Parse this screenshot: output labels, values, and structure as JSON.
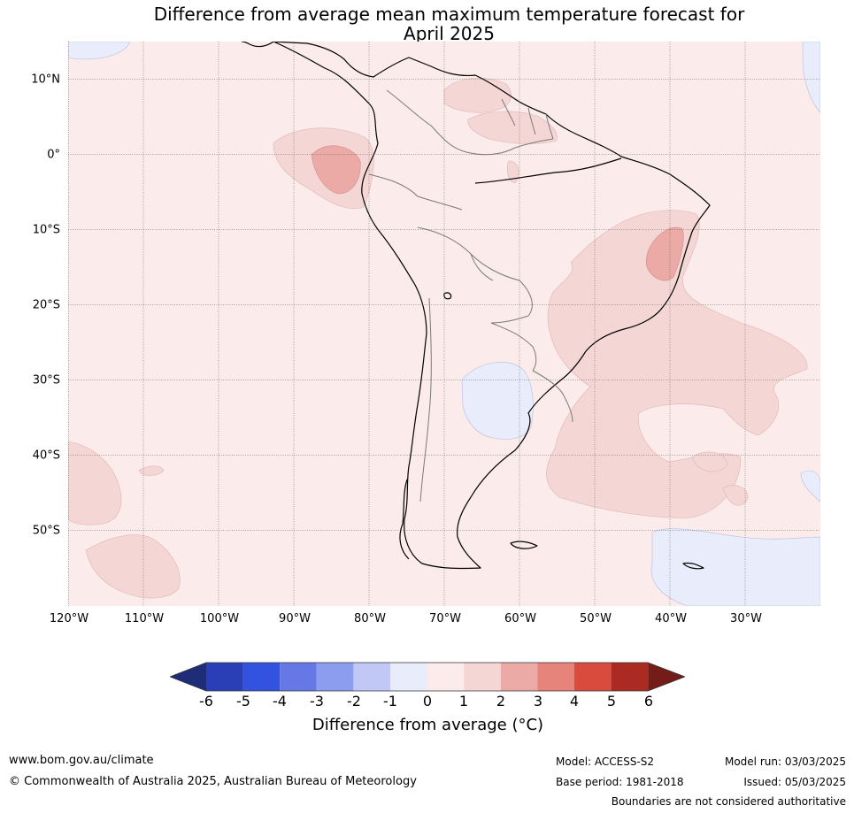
{
  "title_line1": "Difference from average mean maximum temperature forecast for",
  "title_line2": "April 2025",
  "map": {
    "region": "South America",
    "lon_range": [
      -120,
      -20
    ],
    "lat_range": [
      -60,
      15
    ],
    "lat_labels": [
      {
        "lat": 10,
        "label": "10°N"
      },
      {
        "lat": 0,
        "label": "0°"
      },
      {
        "lat": -10,
        "label": "10°S"
      },
      {
        "lat": -20,
        "label": "20°S"
      },
      {
        "lat": -30,
        "label": "30°S"
      },
      {
        "lat": -40,
        "label": "40°S"
      },
      {
        "lat": -50,
        "label": "50°S"
      }
    ],
    "lon_labels": [
      {
        "lon": -120,
        "label": "120°W"
      },
      {
        "lon": -110,
        "label": "110°W"
      },
      {
        "lon": -100,
        "label": "100°W"
      },
      {
        "lon": -90,
        "label": "90°W"
      },
      {
        "lon": -80,
        "label": "80°W"
      },
      {
        "lon": -70,
        "label": "70°W"
      },
      {
        "lon": -60,
        "label": "60°W"
      },
      {
        "lon": -50,
        "label": "50°W"
      },
      {
        "lon": -40,
        "label": "40°W"
      },
      {
        "lon": -30,
        "label": "30°W"
      }
    ],
    "background_bin": "0 to 1",
    "colors": {
      "bin_0_1": "#fbebea",
      "bin_1_2": "#f4d6d4",
      "bin_2_3": "#ebaaa6",
      "bin_m1_0": "#e8ecfb",
      "coast": "#000000",
      "borders": "#7a7a7a",
      "grid": "#555555"
    }
  },
  "colorbar": {
    "tick_labels": [
      "-6",
      "-5",
      "-4",
      "-3",
      "-2",
      "-1",
      "0",
      "1",
      "2",
      "3",
      "4",
      "5",
      "6"
    ],
    "colors_low_to_high": [
      "#1f2d78",
      "#2a3eb5",
      "#3153e0",
      "#6578e6",
      "#8c9cee",
      "#c2c8f5",
      "#e8ecfb",
      "#fbebea",
      "#f4d6d4",
      "#ebaaa6",
      "#e6837a",
      "#d94b3d",
      "#ab2a22",
      "#731c18"
    ],
    "label": "Difference from average (°C)"
  },
  "footer": {
    "url": "www.bom.gov.au/climate",
    "copyright": "© Commonwealth of Australia 2025, Australian Bureau of Meteorology",
    "model": "Model: ACCESS-S2",
    "base_period": "Base period: 1981-2018",
    "model_run": "Model run: 03/03/2025",
    "issued": "Issued: 05/03/2025",
    "disclaimer": "Boundaries are not considered authoritative"
  }
}
